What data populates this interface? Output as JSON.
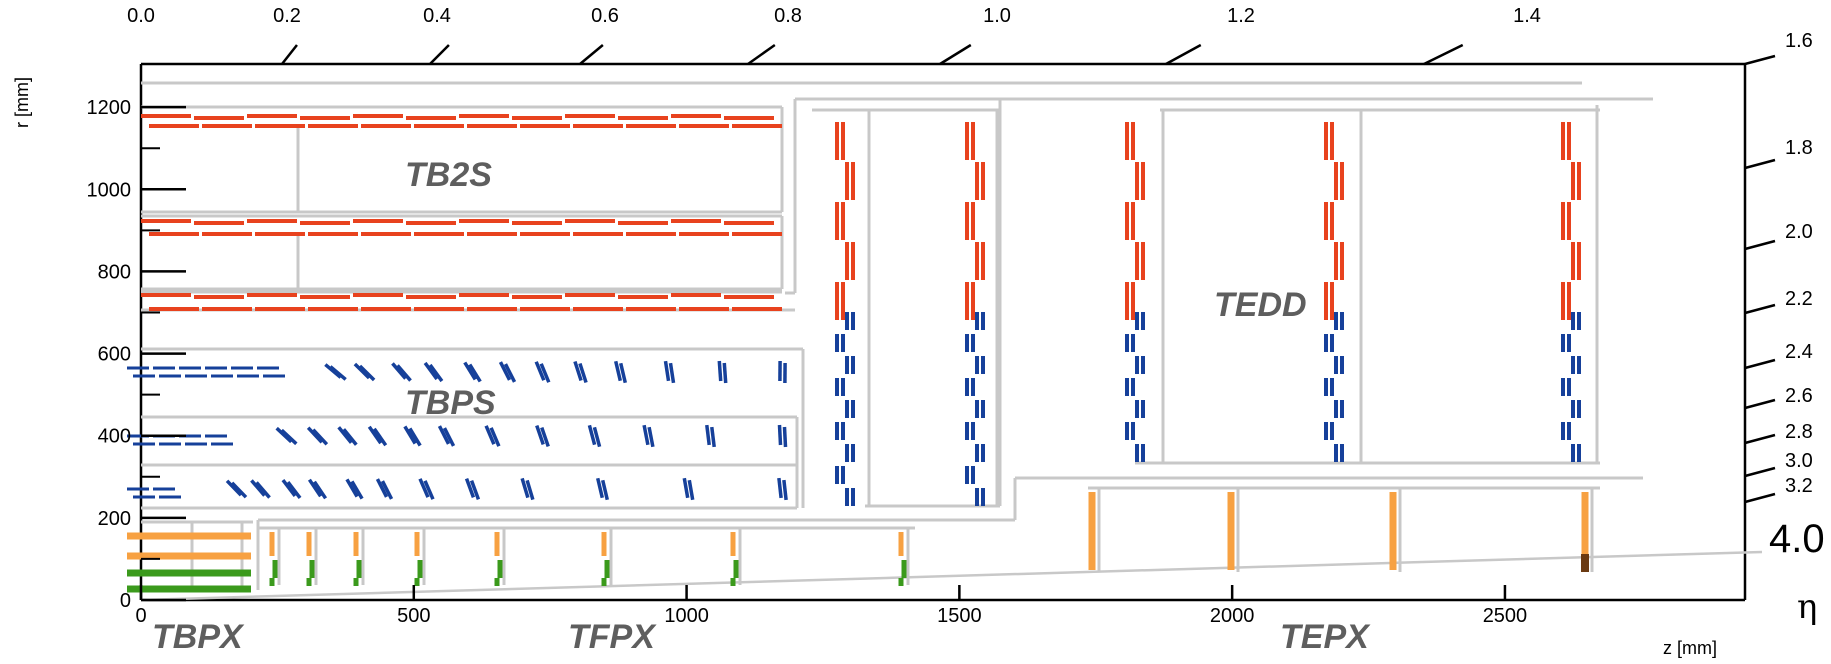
{
  "colors": {
    "support": "#c8c8c8",
    "strip_2s": "#e8421e",
    "ps_module": "#16409a",
    "pixel_outer": "#f7a142",
    "pixel_inner": "#3b9a1c",
    "pixel_dark": "#6b3a12",
    "label": "#5e5e5e"
  },
  "axes": {
    "x_title": "z [mm]",
    "y_title": "r [mm]",
    "x_ticks": [
      {
        "value": 0,
        "label": "0"
      },
      {
        "value": 500,
        "label": "500"
      },
      {
        "value": 1000,
        "label": "1000"
      },
      {
        "value": 1500,
        "label": "1500"
      },
      {
        "value": 2000,
        "label": "2000"
      },
      {
        "value": 2500,
        "label": "2500"
      }
    ],
    "y_ticks": [
      {
        "value": 0,
        "label": "0"
      },
      {
        "value": 200,
        "label": "200"
      },
      {
        "value": 400,
        "label": "400"
      },
      {
        "value": 600,
        "label": "600"
      },
      {
        "value": 800,
        "label": "800"
      },
      {
        "value": 1000,
        "label": "1000"
      },
      {
        "value": 1200,
        "label": "1200"
      }
    ],
    "top_eta_labels": [
      "0.0",
      "0.2",
      "0.4",
      "0.6",
      "0.8",
      "1.0",
      "1.2",
      "1.4"
    ],
    "right_eta_labels": [
      "1.6",
      "1.8",
      "2.0",
      "2.2",
      "2.4",
      "2.6",
      "2.8",
      "3.0",
      "3.2"
    ],
    "eta_symbol": "η",
    "eta_max": "4.0"
  },
  "regions": {
    "tb2s": "TB2S",
    "tbps": "TBPS",
    "tedd": "TEDD",
    "tbpx": "TBPX",
    "tfpx": "TFPX",
    "tepx": "TEPX"
  }
}
